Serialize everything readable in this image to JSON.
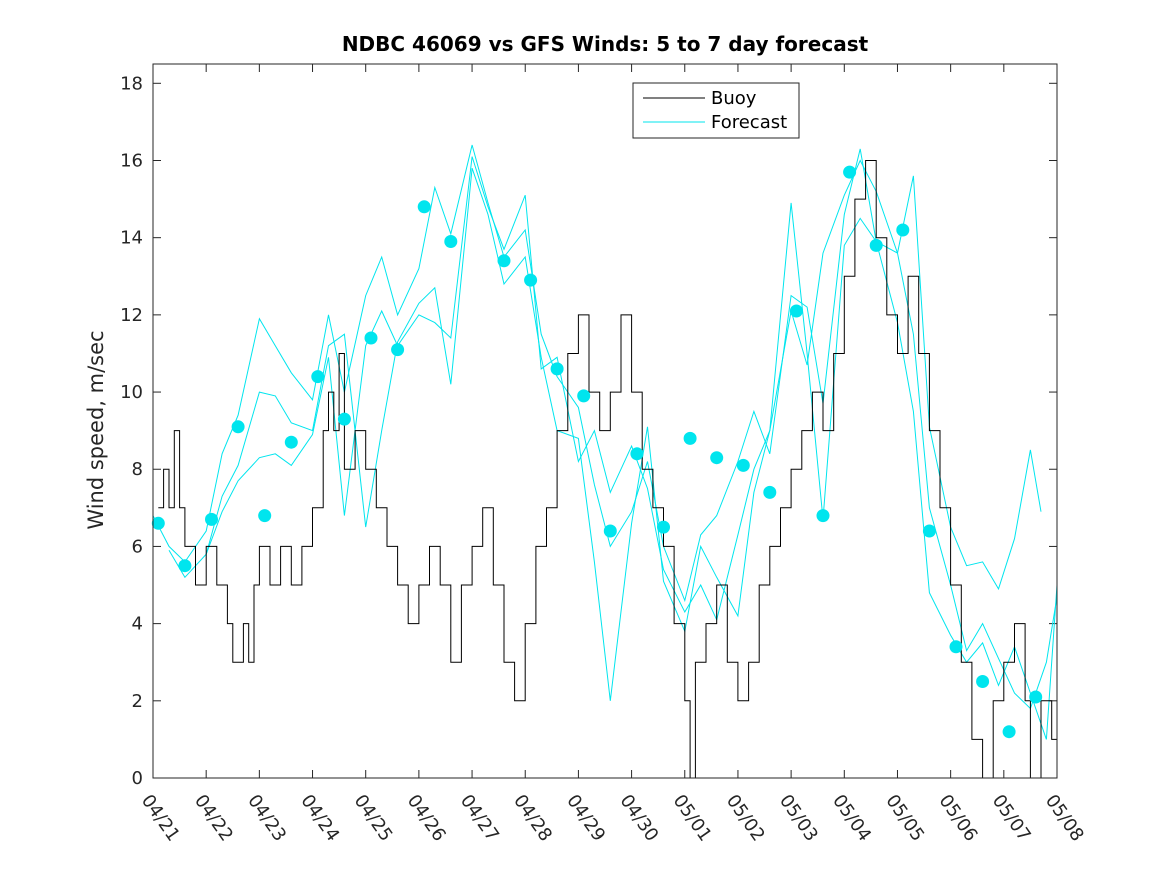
{
  "chart_data": {
    "type": "line",
    "title": "NDBC 46069 vs GFS Winds: 5 to 7 day forecast",
    "xlabel": "",
    "ylabel": "Wind speed, m/sec",
    "xlim": [
      0,
      17
    ],
    "ylim": [
      0,
      18.5
    ],
    "yticks": [
      0,
      2,
      4,
      6,
      8,
      10,
      12,
      14,
      16,
      18
    ],
    "xtick_labels": [
      "04/21",
      "04/22",
      "04/23",
      "04/24",
      "04/25",
      "04/26",
      "04/27",
      "04/28",
      "04/29",
      "04/30",
      "05/01",
      "05/02",
      "05/03",
      "05/04",
      "05/05",
      "05/06",
      "05/07",
      "05/08"
    ],
    "grid": false,
    "legend": {
      "placement": "top-center",
      "entries": [
        {
          "label": "Buoy",
          "color": "#000000"
        },
        {
          "label": "Forecast",
          "color": "#00e5ee"
        }
      ]
    },
    "colors": {
      "buoy": "#000000",
      "forecast": "#00e5ee",
      "markers": "#00e5ee"
    },
    "series": [
      {
        "name": "Buoy",
        "x_unit": "days since 04/21",
        "points": [
          [
            0.1,
            7
          ],
          [
            0.2,
            8
          ],
          [
            0.3,
            7
          ],
          [
            0.4,
            9
          ],
          [
            0.5,
            7
          ],
          [
            0.6,
            6
          ],
          [
            0.8,
            5
          ],
          [
            1.0,
            6
          ],
          [
            1.2,
            5
          ],
          [
            1.4,
            4
          ],
          [
            1.5,
            3
          ],
          [
            1.7,
            4
          ],
          [
            1.8,
            3
          ],
          [
            1.9,
            5
          ],
          [
            2.0,
            6
          ],
          [
            2.2,
            5
          ],
          [
            2.4,
            6
          ],
          [
            2.6,
            5
          ],
          [
            2.8,
            6
          ],
          [
            3.0,
            7
          ],
          [
            3.2,
            9
          ],
          [
            3.3,
            10
          ],
          [
            3.4,
            9
          ],
          [
            3.5,
            11
          ],
          [
            3.6,
            8
          ],
          [
            3.8,
            9
          ],
          [
            4.0,
            8
          ],
          [
            4.2,
            7
          ],
          [
            4.4,
            6
          ],
          [
            4.6,
            5
          ],
          [
            4.8,
            4
          ],
          [
            5.0,
            5
          ],
          [
            5.2,
            6
          ],
          [
            5.4,
            5
          ],
          [
            5.6,
            3
          ],
          [
            5.8,
            5
          ],
          [
            6.0,
            6
          ],
          [
            6.2,
            7
          ],
          [
            6.4,
            5
          ],
          [
            6.6,
            3
          ],
          [
            6.8,
            2
          ],
          [
            7.0,
            4
          ],
          [
            7.2,
            6
          ],
          [
            7.4,
            7
          ],
          [
            7.6,
            9
          ],
          [
            7.8,
            11
          ],
          [
            8.0,
            12
          ],
          [
            8.2,
            10
          ],
          [
            8.4,
            9
          ],
          [
            8.6,
            10
          ],
          [
            8.8,
            12
          ],
          [
            9.0,
            10
          ],
          [
            9.2,
            8
          ],
          [
            9.4,
            7
          ],
          [
            9.6,
            6
          ],
          [
            9.8,
            4
          ],
          [
            10.0,
            2
          ],
          [
            10.1,
            0
          ],
          [
            10.2,
            3
          ],
          [
            10.4,
            4
          ],
          [
            10.6,
            5
          ],
          [
            10.8,
            3
          ],
          [
            11.0,
            2
          ],
          [
            11.2,
            3
          ],
          [
            11.4,
            5
          ],
          [
            11.6,
            6
          ],
          [
            11.8,
            7
          ],
          [
            12.0,
            8
          ],
          [
            12.2,
            9
          ],
          [
            12.4,
            10
          ],
          [
            12.6,
            9
          ],
          [
            12.8,
            11
          ],
          [
            13.0,
            13
          ],
          [
            13.2,
            15
          ],
          [
            13.4,
            16
          ],
          [
            13.6,
            14
          ],
          [
            13.8,
            12
          ],
          [
            14.0,
            11
          ],
          [
            14.2,
            13
          ],
          [
            14.4,
            11
          ],
          [
            14.6,
            9
          ],
          [
            14.8,
            7
          ],
          [
            15.0,
            5
          ],
          [
            15.2,
            3
          ],
          [
            15.4,
            1
          ],
          [
            15.6,
            0
          ],
          [
            15.8,
            2
          ],
          [
            16.0,
            3
          ],
          [
            16.2,
            4
          ],
          [
            16.4,
            2
          ],
          [
            16.5,
            0
          ],
          [
            16.7,
            2
          ],
          [
            16.9,
            1
          ],
          [
            17.0,
            2
          ]
        ]
      },
      {
        "name": "Forecast",
        "x_unit": "days since 04/21",
        "markers": [
          [
            0.1,
            6.6
          ],
          [
            0.6,
            5.5
          ],
          [
            1.1,
            6.7
          ],
          [
            1.6,
            9.1
          ],
          [
            2.1,
            6.8
          ],
          [
            2.6,
            8.7
          ],
          [
            3.1,
            10.4
          ],
          [
            3.6,
            9.3
          ],
          [
            4.1,
            11.4
          ],
          [
            4.6,
            11.1
          ],
          [
            5.1,
            14.8
          ],
          [
            5.6,
            13.9
          ],
          [
            6.6,
            13.4
          ],
          [
            7.1,
            12.9
          ],
          [
            7.6,
            10.6
          ],
          [
            8.1,
            9.9
          ],
          [
            8.6,
            6.4
          ],
          [
            9.1,
            8.4
          ],
          [
            9.6,
            6.5
          ],
          [
            10.1,
            8.8
          ],
          [
            10.6,
            8.3
          ],
          [
            11.1,
            8.1
          ],
          [
            11.6,
            7.4
          ],
          [
            12.1,
            12.1
          ],
          [
            12.6,
            6.8
          ],
          [
            13.1,
            15.7
          ],
          [
            13.6,
            13.8
          ],
          [
            14.1,
            14.2
          ],
          [
            14.6,
            6.4
          ],
          [
            15.1,
            3.4
          ],
          [
            15.6,
            2.5
          ],
          [
            16.1,
            1.2
          ],
          [
            16.6,
            2.1
          ]
        ],
        "runs": [
          [
            [
              0,
              6.8
            ],
            [
              0.3,
              6.0
            ],
            [
              0.6,
              5.6
            ],
            [
              1.0,
              6.4
            ],
            [
              1.3,
              8.4
            ],
            [
              1.6,
              9.4
            ],
            [
              2.0,
              11.9
            ],
            [
              2.3,
              11.2
            ],
            [
              2.6,
              10.5
            ],
            [
              3.0,
              9.8
            ],
            [
              3.3,
              12.0
            ],
            [
              3.6,
              10.0
            ],
            [
              4.0,
              12.5
            ],
            [
              4.3,
              13.5
            ],
            [
              4.6,
              12.0
            ],
            [
              5.0,
              13.2
            ],
            [
              5.3,
              15.3
            ],
            [
              5.6,
              14.1
            ],
            [
              6.0,
              16.4
            ],
            [
              6.3,
              14.9
            ],
            [
              6.6,
              13.5
            ],
            [
              7.0,
              14.2
            ],
            [
              7.3,
              11.5
            ],
            [
              7.6,
              10.4
            ],
            [
              8.0,
              9.6
            ],
            [
              8.3,
              7.6
            ],
            [
              8.6,
              6.0
            ],
            [
              9.0,
              6.9
            ],
            [
              9.3,
              8.2
            ],
            [
              9.6,
              6.0
            ],
            [
              10.0,
              4.6
            ],
            [
              10.3,
              6.3
            ],
            [
              10.6,
              6.8
            ],
            [
              11.0,
              8.2
            ],
            [
              11.3,
              9.5
            ],
            [
              11.6,
              8.4
            ],
            [
              12.0,
              12.5
            ],
            [
              12.3,
              12.2
            ],
            [
              12.6,
              9.7
            ],
            [
              13.0,
              14.6
            ],
            [
              13.3,
              16.3
            ],
            [
              13.6,
              13.9
            ],
            [
              14.0,
              13.6
            ],
            [
              14.3,
              15.6
            ],
            [
              14.6,
              9.1
            ],
            [
              15.0,
              6.5
            ],
            [
              15.3,
              5.5
            ],
            [
              15.6,
              5.6
            ],
            [
              15.9,
              4.9
            ],
            [
              16.2,
              6.2
            ],
            [
              16.5,
              8.5
            ],
            [
              16.7,
              6.9
            ]
          ],
          [
            [
              0.3,
              5.9
            ],
            [
              0.6,
              5.2
            ],
            [
              1.0,
              5.8
            ],
            [
              1.3,
              7.3
            ],
            [
              1.6,
              8.1
            ],
            [
              2.0,
              10.0
            ],
            [
              2.3,
              9.9
            ],
            [
              2.6,
              9.2
            ],
            [
              3.0,
              9.0
            ],
            [
              3.3,
              11.2
            ],
            [
              3.6,
              11.5
            ],
            [
              4.0,
              6.5
            ],
            [
              4.3,
              9.0
            ],
            [
              4.6,
              11.3
            ],
            [
              5.0,
              12.3
            ],
            [
              5.3,
              12.7
            ],
            [
              5.6,
              10.2
            ],
            [
              6.0,
              15.8
            ],
            [
              6.3,
              14.6
            ],
            [
              6.6,
              12.8
            ],
            [
              7.0,
              13.5
            ],
            [
              7.3,
              10.9
            ],
            [
              7.6,
              9.0
            ],
            [
              8.0,
              8.8
            ],
            [
              8.3,
              5.6
            ],
            [
              8.6,
              2.0
            ],
            [
              9.0,
              6.6
            ],
            [
              9.3,
              9.1
            ],
            [
              9.6,
              5.1
            ],
            [
              10.0,
              3.8
            ],
            [
              10.3,
              6.0
            ],
            [
              10.6,
              5.2
            ],
            [
              11.0,
              4.2
            ],
            [
              11.3,
              7.4
            ],
            [
              11.6,
              9.0
            ],
            [
              12.0,
              14.9
            ],
            [
              12.3,
              11.0
            ],
            [
              12.6,
              6.7
            ],
            [
              13.0,
              13.8
            ],
            [
              13.3,
              14.5
            ],
            [
              13.6,
              13.9
            ],
            [
              14.0,
              11.8
            ],
            [
              14.3,
              9.5
            ],
            [
              14.6,
              4.8
            ],
            [
              15.0,
              3.7
            ],
            [
              15.3,
              3.0
            ],
            [
              15.6,
              3.5
            ],
            [
              15.9,
              2.4
            ],
            [
              16.2,
              3.4
            ],
            [
              16.5,
              2.2
            ],
            [
              16.8,
              1.0
            ],
            [
              17.0,
              5.0
            ]
          ],
          [
            [
              1.0,
              5.8
            ],
            [
              1.3,
              6.9
            ],
            [
              1.6,
              7.7
            ],
            [
              2.0,
              8.3
            ],
            [
              2.3,
              8.4
            ],
            [
              2.6,
              8.1
            ],
            [
              3.0,
              8.9
            ],
            [
              3.3,
              10.9
            ],
            [
              3.6,
              6.8
            ],
            [
              4.0,
              11.2
            ],
            [
              4.3,
              12.1
            ],
            [
              4.6,
              11.2
            ],
            [
              5.0,
              12.0
            ],
            [
              5.3,
              11.8
            ],
            [
              5.6,
              11.4
            ],
            [
              6.0,
              16.1
            ],
            [
              6.3,
              14.8
            ],
            [
              6.6,
              13.7
            ],
            [
              7.0,
              15.1
            ],
            [
              7.3,
              10.6
            ],
            [
              7.6,
              10.9
            ],
            [
              8.0,
              8.2
            ],
            [
              8.3,
              9.0
            ],
            [
              8.6,
              7.4
            ],
            [
              9.0,
              8.6
            ],
            [
              9.3,
              7.5
            ],
            [
              9.6,
              5.4
            ],
            [
              10.0,
              4.3
            ],
            [
              10.3,
              5.0
            ],
            [
              10.6,
              4.1
            ],
            [
              11.0,
              6.3
            ],
            [
              11.3,
              8.0
            ],
            [
              11.6,
              9.0
            ],
            [
              12.0,
              12.1
            ],
            [
              12.3,
              10.7
            ],
            [
              12.6,
              13.6
            ],
            [
              13.0,
              15.1
            ],
            [
              13.3,
              16.0
            ],
            [
              13.6,
              15.2
            ],
            [
              14.0,
              13.6
            ],
            [
              14.3,
              11.5
            ],
            [
              14.6,
              7.0
            ],
            [
              15.0,
              5.0
            ],
            [
              15.3,
              3.3
            ],
            [
              15.6,
              4.0
            ],
            [
              15.9,
              3.1
            ],
            [
              16.2,
              2.2
            ],
            [
              16.5,
              1.8
            ],
            [
              16.8,
              3.0
            ],
            [
              17.0,
              4.7
            ]
          ]
        ]
      }
    ]
  }
}
